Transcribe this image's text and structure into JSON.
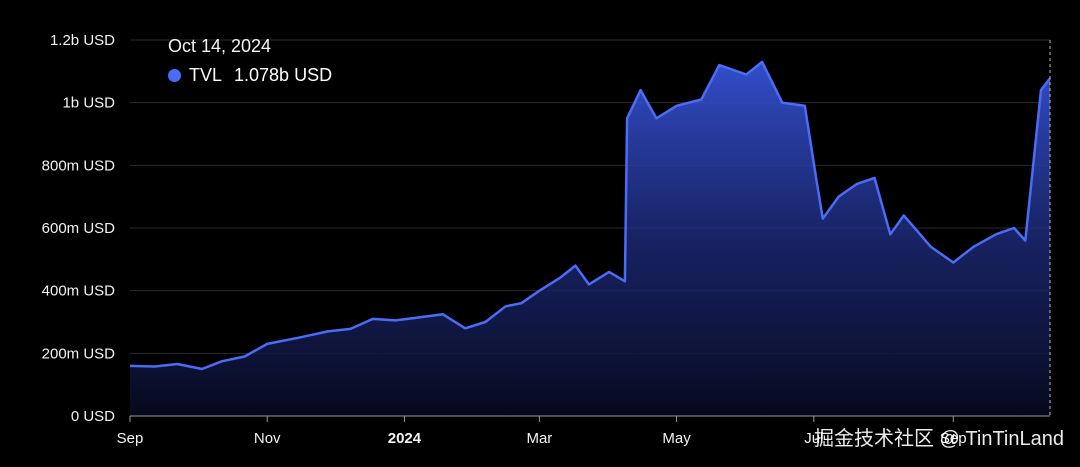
{
  "chart_data": {
    "type": "area",
    "y_ticks": [
      "0 USD",
      "200m USD",
      "400m USD",
      "600m USD",
      "800m USD",
      "1b USD",
      "1.2b USD"
    ],
    "y_tick_values": [
      0,
      200,
      400,
      600,
      800,
      1000,
      1200
    ],
    "ylim": [
      0,
      1200
    ],
    "x_ticks": [
      {
        "label": "Sep",
        "date": "2023-09-01"
      },
      {
        "label": "Nov",
        "date": "2023-11-01"
      },
      {
        "label": "2024",
        "date": "2024-01-01",
        "bold": true
      },
      {
        "label": "Mar",
        "date": "2024-03-01"
      },
      {
        "label": "May",
        "date": "2024-05-01"
      },
      {
        "label": "Jul",
        "date": "2024-07-01"
      },
      {
        "label": "Sep",
        "date": "2024-09-01"
      }
    ],
    "xlim": [
      "2023-09-01",
      "2024-10-14"
    ],
    "series": [
      {
        "name": "TVL",
        "color": "#4a6cf7",
        "unit": "m USD",
        "points": [
          [
            "2023-09-01",
            160
          ],
          [
            "2023-09-12",
            158
          ],
          [
            "2023-09-22",
            166
          ],
          [
            "2023-10-03",
            150
          ],
          [
            "2023-10-12",
            175
          ],
          [
            "2023-10-22",
            190
          ],
          [
            "2023-11-01",
            230
          ],
          [
            "2023-11-15",
            250
          ],
          [
            "2023-11-28",
            270
          ],
          [
            "2023-12-08",
            278
          ],
          [
            "2023-12-18",
            310
          ],
          [
            "2023-12-28",
            305
          ],
          [
            "2024-01-08",
            315
          ],
          [
            "2024-01-18",
            325
          ],
          [
            "2024-01-28",
            280
          ],
          [
            "2024-02-06",
            300
          ],
          [
            "2024-02-15",
            350
          ],
          [
            "2024-02-22",
            360
          ],
          [
            "2024-03-01",
            400
          ],
          [
            "2024-03-10",
            440
          ],
          [
            "2024-03-17",
            480
          ],
          [
            "2024-03-23",
            420
          ],
          [
            "2024-04-01",
            460
          ],
          [
            "2024-04-08",
            430
          ],
          [
            "2024-04-09",
            950
          ],
          [
            "2024-04-15",
            1040
          ],
          [
            "2024-04-22",
            950
          ],
          [
            "2024-05-01",
            990
          ],
          [
            "2024-05-12",
            1010
          ],
          [
            "2024-05-20",
            1120
          ],
          [
            "2024-06-01",
            1090
          ],
          [
            "2024-06-08",
            1130
          ],
          [
            "2024-06-17",
            1000
          ],
          [
            "2024-06-27",
            990
          ],
          [
            "2024-07-02",
            760
          ],
          [
            "2024-07-05",
            630
          ],
          [
            "2024-07-12",
            700
          ],
          [
            "2024-07-20",
            740
          ],
          [
            "2024-07-28",
            760
          ],
          [
            "2024-08-04",
            580
          ],
          [
            "2024-08-10",
            640
          ],
          [
            "2024-08-16",
            590
          ],
          [
            "2024-08-22",
            540
          ],
          [
            "2024-09-01",
            490
          ],
          [
            "2024-09-10",
            540
          ],
          [
            "2024-09-20",
            580
          ],
          [
            "2024-09-28",
            600
          ],
          [
            "2024-10-03",
            560
          ],
          [
            "2024-10-10",
            1040
          ],
          [
            "2024-10-14",
            1078
          ]
        ]
      }
    ]
  },
  "tooltip": {
    "date": "Oct 14, 2024",
    "series_label": "TVL",
    "value": "1.078b USD"
  },
  "watermark": "掘金技术社区 @ TinTinLand"
}
